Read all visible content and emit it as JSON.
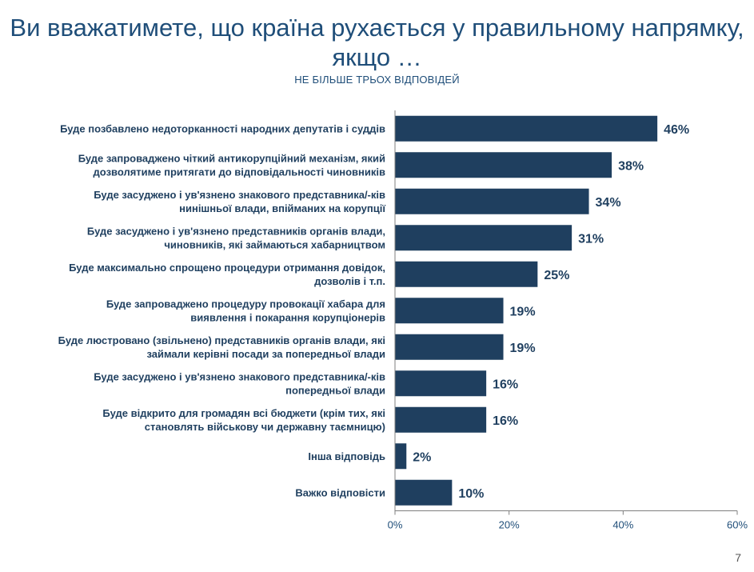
{
  "title": "Ви вважатимете, що країна рухається у правильному напрямку, якщо …",
  "subtitle": "НЕ БІЛЬШЕ ТРЬОХ ВІДПОВІДЕЙ",
  "page_number": "7",
  "colors": {
    "bar": "#1f3f5f",
    "title": "#1f4e79",
    "axis": "#7f7f7f"
  },
  "chart_data": {
    "type": "bar",
    "orientation": "horizontal",
    "categories": [
      [
        "Буде позбавлено недоторканності народних депутатів і суддів"
      ],
      [
        "Буде запроваджено чіткий антикорупційний механізм, який",
        "дозволятиме притягати до відповідальності чиновників"
      ],
      [
        "Буде засуджено і ув'язнено знакового представника/-ків",
        "нинішньої влади, впійманих на корупції"
      ],
      [
        "Буде засуджено і ув'язнено представників органів влади,",
        "чиновників, які займаються хабарництвом"
      ],
      [
        "Буде максимально спрощено процедури отримання довідок,",
        "дозволів і т.п."
      ],
      [
        "Буде запроваджено процедуру провокації хабара для",
        "виявлення і покарання корупціонерів"
      ],
      [
        "Буде люстровано (звільнено) представників органів влади, які",
        "займали керівні посади за попередньої влади"
      ],
      [
        "Буде засуджено і ув'язнено знакового представника/-ків",
        "попередньої влади"
      ],
      [
        "Буде відкрито для громадян всі бюджети (крім тих, які",
        "становлять військову чи державну таємницю)"
      ],
      [
        "Інша відповідь"
      ],
      [
        "Важко відповісти"
      ]
    ],
    "values": [
      46,
      38,
      34,
      31,
      25,
      19,
      19,
      16,
      16,
      2,
      10
    ],
    "value_labels": [
      "46%",
      "38%",
      "34%",
      "31%",
      "25%",
      "19%",
      "19%",
      "16%",
      "16%",
      "2%",
      "10%"
    ],
    "xlim": [
      0,
      60
    ],
    "xticks": [
      0,
      20,
      40,
      60
    ],
    "xtick_labels": [
      "0%",
      "20%",
      "40%",
      "60%"
    ],
    "grid": false,
    "legend": "none"
  }
}
